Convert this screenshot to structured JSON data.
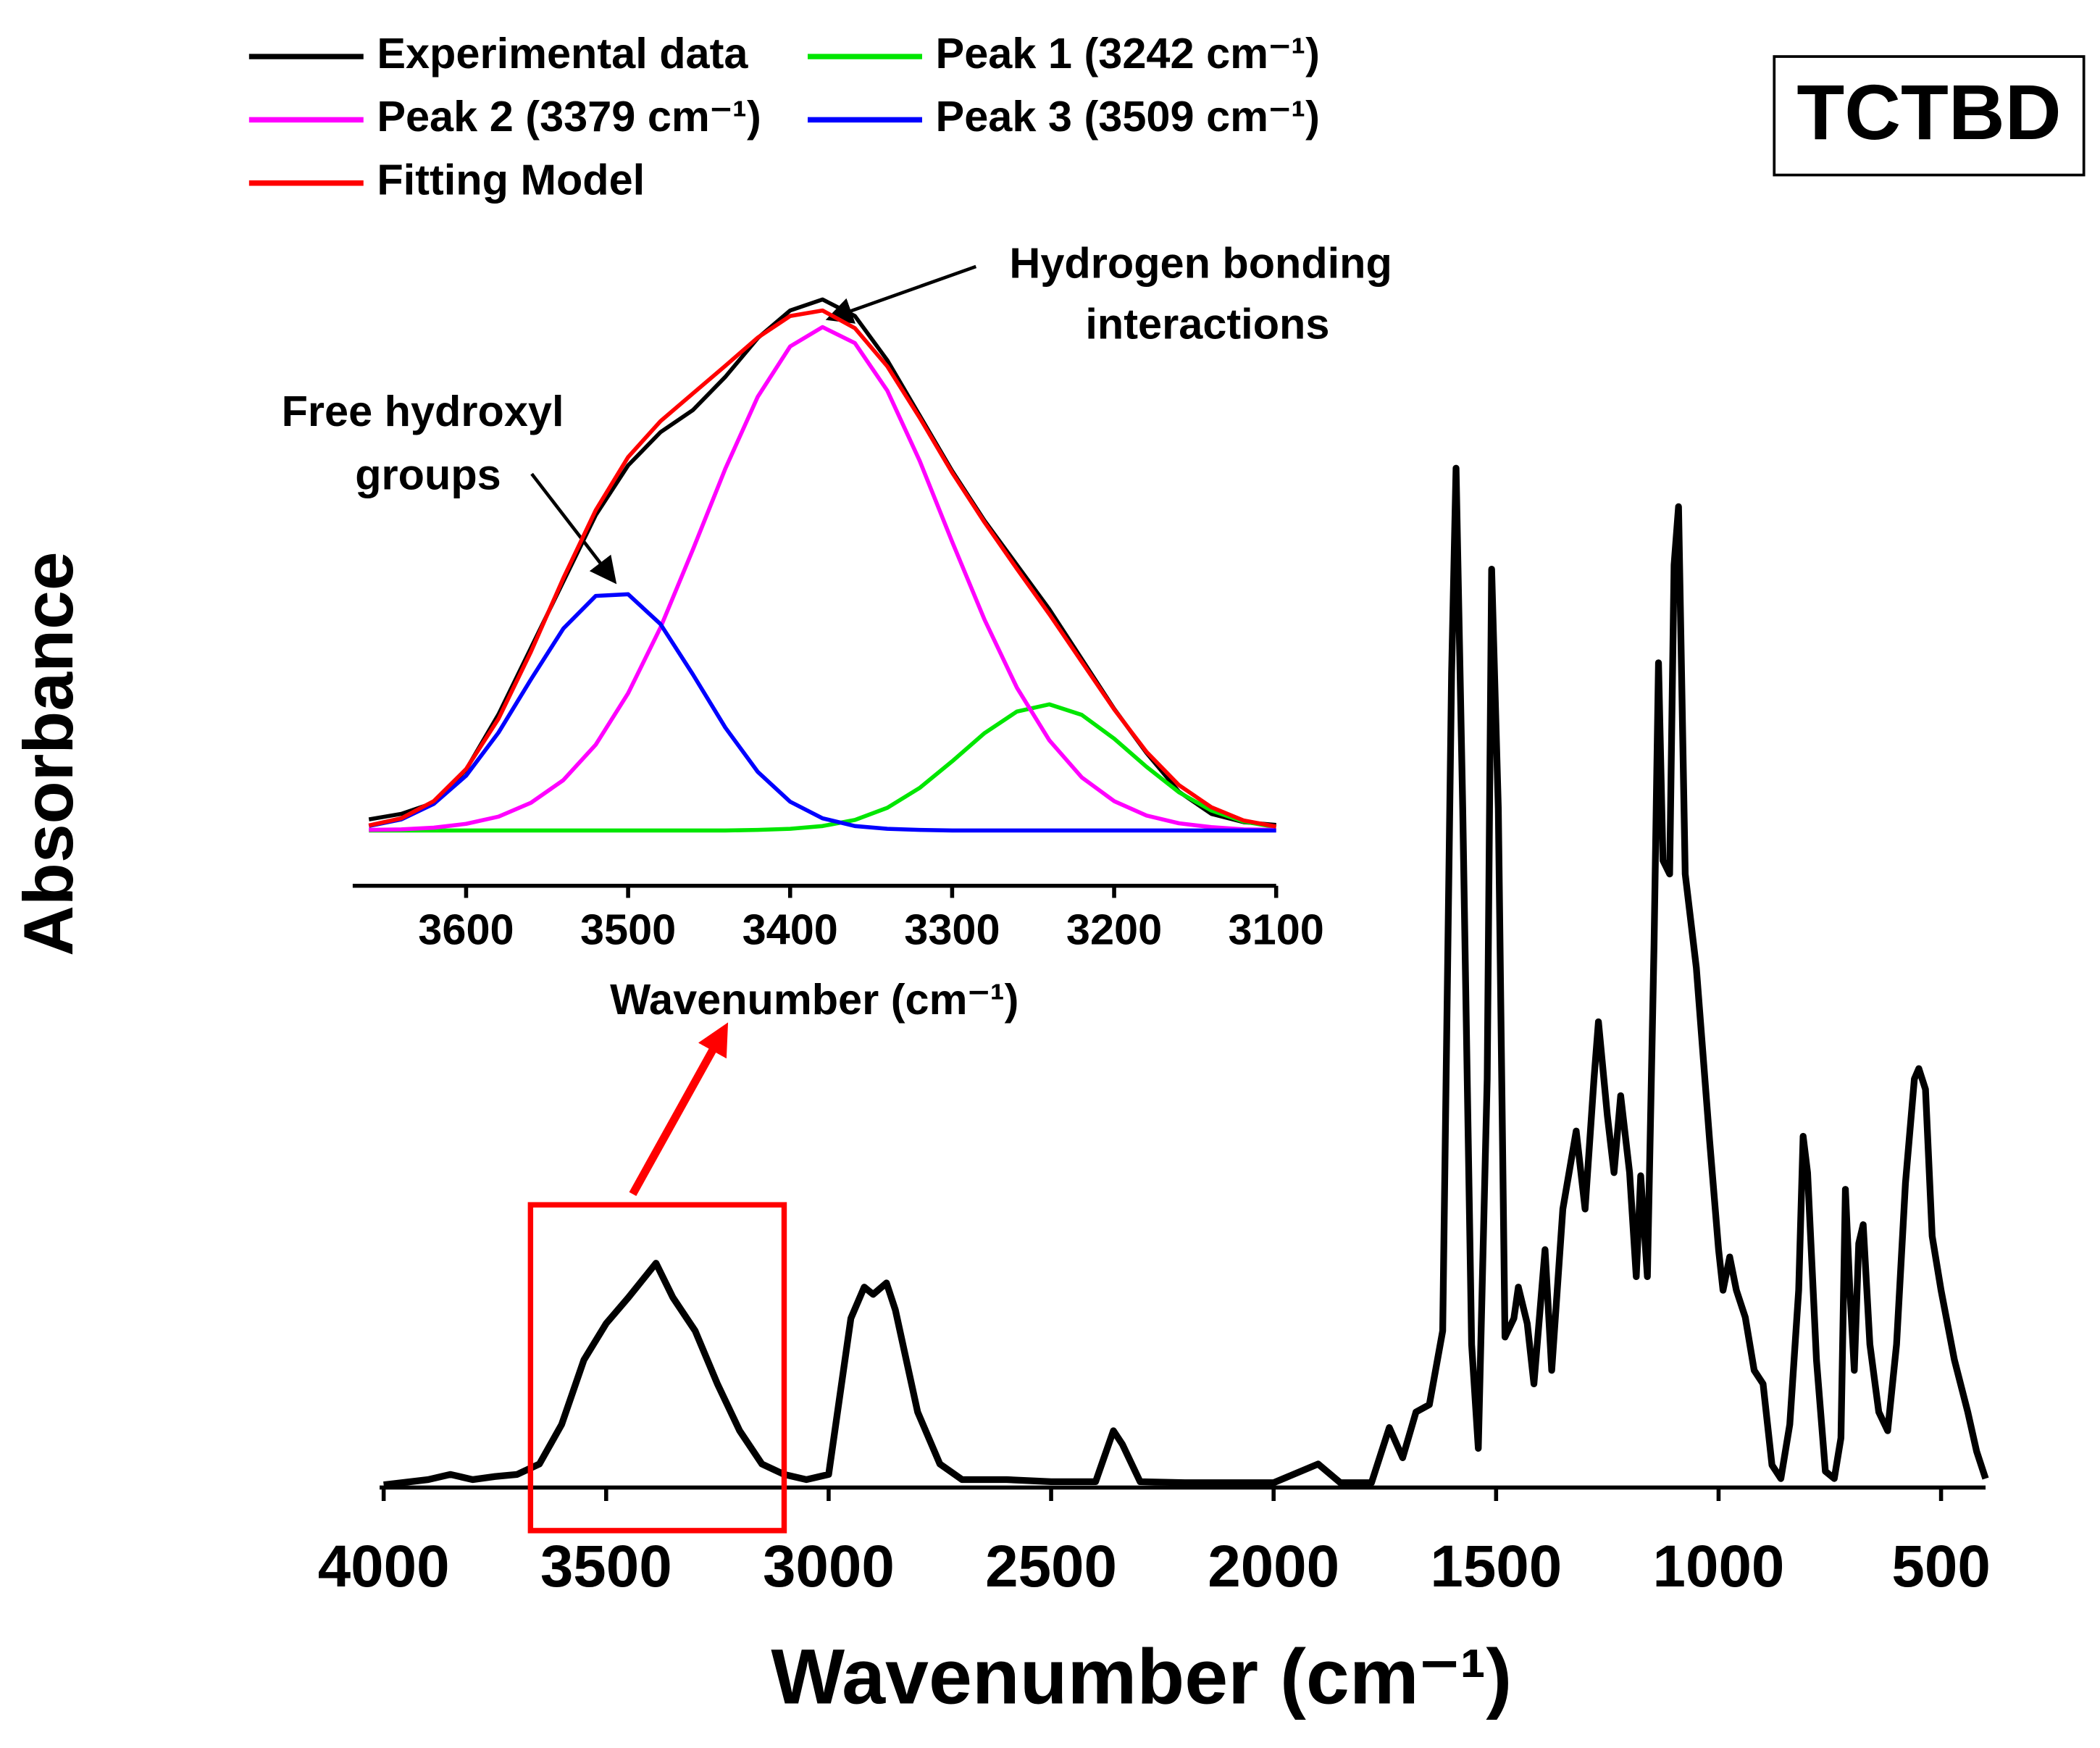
{
  "chart_data": [
    {
      "type": "line",
      "title": "TCTBD",
      "xlabel": "Wavenumber (cm⁻¹)",
      "ylabel": "Absorbance",
      "x": [
        4000,
        3900,
        3850,
        3800,
        3750,
        3700,
        3650,
        3600,
        3550,
        3500,
        3450,
        3388,
        3350,
        3300,
        3250,
        3200,
        3150,
        3100,
        3050,
        3000,
        2950,
        2920,
        2900,
        2870,
        2850,
        2800,
        2750,
        2700,
        2600,
        2500,
        2400,
        2360,
        2340,
        2300,
        2200,
        2000,
        1900,
        1850,
        1780,
        1740,
        1710,
        1680,
        1650,
        1620,
        1600,
        1590,
        1575,
        1555,
        1540,
        1520,
        1510,
        1495,
        1480,
        1460,
        1450,
        1430,
        1415,
        1390,
        1375,
        1350,
        1320,
        1300,
        1280,
        1270,
        1250,
        1235,
        1220,
        1200,
        1185,
        1175,
        1160,
        1145,
        1135,
        1125,
        1110,
        1100,
        1090,
        1075,
        1050,
        1020,
        1000,
        990,
        975,
        960,
        940,
        920,
        900,
        880,
        860,
        840,
        820,
        810,
        800,
        780,
        760,
        740,
        725,
        715,
        705,
        695,
        685,
        675,
        660,
        640,
        620,
        600,
        580,
        560,
        550,
        535,
        520,
        500,
        470,
        440,
        420,
        400
      ],
      "values": [
        0,
        0.005,
        0.01,
        0.005,
        0.008,
        0.01,
        0.02,
        0.058,
        0.12,
        0.155,
        0.18,
        0.213,
        0.18,
        0.148,
        0.097,
        0.052,
        0.02,
        0.01,
        0.005,
        0.01,
        0.16,
        0.19,
        0.183,
        0.194,
        0.168,
        0.07,
        0.02,
        0.005,
        0.005,
        0.003,
        0.003,
        0.052,
        0.039,
        0.003,
        0.002,
        0.002,
        0.02,
        0.002,
        0.002,
        0.055,
        0.026,
        0.07,
        0.077,
        0.148,
        0.78,
        0.977,
        0.65,
        0.135,
        0.035,
        0.39,
        0.88,
        0.65,
        0.142,
        0.16,
        0.19,
        0.155,
        0.097,
        0.226,
        0.11,
        0.265,
        0.34,
        0.265,
        0.39,
        0.445,
        0.355,
        0.3,
        0.374,
        0.3,
        0.2,
        0.297,
        0.2,
        0.52,
        0.79,
        0.6,
        0.587,
        0.884,
        0.94,
        0.587,
        0.497,
        0.33,
        0.226,
        0.187,
        0.219,
        0.187,
        0.161,
        0.11,
        0.097,
        0.019,
        0.006,
        0.058,
        0.187,
        0.335,
        0.3,
        0.12,
        0.013,
        0.006,
        0.045,
        0.284,
        0.187,
        0.11,
        0.232,
        0.25,
        0.135,
        0.07,
        0.052,
        0.135,
        0.29,
        0.39,
        0.4,
        0.38,
        0.239,
        0.187,
        0.12,
        0.07,
        0.032,
        0.006
      ],
      "color": "#000000",
      "xlim": [
        4000,
        400
      ],
      "ylim": [
        0,
        1
      ],
      "xticks": [
        4000,
        3500,
        3000,
        2500,
        2000,
        1500,
        1000,
        500
      ]
    },
    {
      "type": "line",
      "xlabel": "Wavenumber (cm⁻¹)",
      "legend": "top",
      "x": [
        3660,
        3640,
        3620,
        3600,
        3580,
        3560,
        3540,
        3520,
        3500,
        3480,
        3460,
        3440,
        3420,
        3400,
        3380,
        3360,
        3340,
        3320,
        3300,
        3280,
        3260,
        3240,
        3220,
        3200,
        3180,
        3160,
        3140,
        3120,
        3100
      ],
      "series": [
        {
          "name": "Experimental data",
          "color": "#000000",
          "values": [
            0.02,
            0.03,
            0.05,
            0.11,
            0.21,
            0.33,
            0.45,
            0.57,
            0.66,
            0.72,
            0.76,
            0.82,
            0.89,
            0.94,
            0.96,
            0.93,
            0.85,
            0.75,
            0.65,
            0.56,
            0.48,
            0.4,
            0.31,
            0.22,
            0.14,
            0.07,
            0.03,
            0.015,
            0.01
          ]
        },
        {
          "name": "Peak 1 (3242 cm⁻¹)",
          "color": "#00e600",
          "values": [
            0,
            0,
            0,
            0,
            0,
            0,
            0,
            0,
            0,
            0,
            0,
            0,
            0.001,
            0.003,
            0.008,
            0.019,
            0.041,
            0.077,
            0.125,
            0.176,
            0.215,
            0.228,
            0.209,
            0.166,
            0.115,
            0.069,
            0.036,
            0.016,
            0.006
          ]
        },
        {
          "name": "Peak 2 (3379 cm⁻¹)",
          "color": "#ff00ff",
          "values": [
            0.001,
            0.002,
            0.005,
            0.012,
            0.025,
            0.05,
            0.091,
            0.155,
            0.248,
            0.367,
            0.508,
            0.654,
            0.784,
            0.875,
            0.91,
            0.881,
            0.795,
            0.668,
            0.522,
            0.381,
            0.258,
            0.163,
            0.096,
            0.053,
            0.027,
            0.013,
            0.006,
            0.002,
            0.001
          ]
        },
        {
          "name": "Peak 3 (3509 cm⁻¹)",
          "color": "#0000ff",
          "values": [
            0.008,
            0.02,
            0.048,
            0.099,
            0.177,
            0.273,
            0.365,
            0.424,
            0.427,
            0.373,
            0.282,
            0.186,
            0.106,
            0.052,
            0.022,
            0.008,
            0.003,
            0.001,
            0,
            0,
            0,
            0,
            0,
            0,
            0,
            0,
            0,
            0,
            0
          ]
        },
        {
          "name": "Fitting Model",
          "color": "#ff0000",
          "values": [
            0.009,
            0.022,
            0.053,
            0.111,
            0.202,
            0.323,
            0.456,
            0.579,
            0.675,
            0.74,
            0.79,
            0.84,
            0.891,
            0.93,
            0.94,
            0.908,
            0.839,
            0.746,
            0.647,
            0.557,
            0.473,
            0.391,
            0.305,
            0.219,
            0.142,
            0.082,
            0.042,
            0.018,
            0.007
          ]
        }
      ],
      "xlim": [
        3670,
        3100
      ],
      "ylim": [
        -0.1,
        1
      ],
      "xticks": [
        3600,
        3500,
        3400,
        3300,
        3200,
        3100
      ],
      "annotations": [
        {
          "lines": [
            "Free hydroxyl",
            "groups"
          ]
        },
        {
          "lines": [
            "Hydrogen bonding",
            "interactions"
          ]
        }
      ]
    }
  ]
}
